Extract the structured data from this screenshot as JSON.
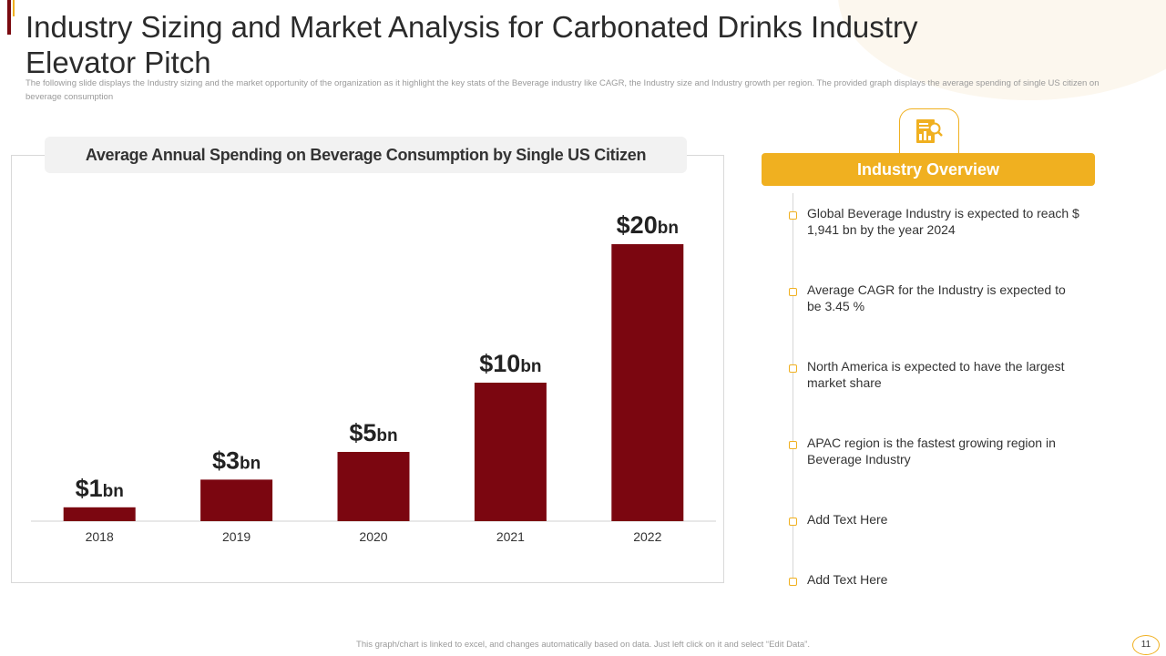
{
  "header": {
    "title": "Industry Sizing and Market Analysis for Carbonated Drinks Industry Elevator Pitch",
    "subtitle": "The following slide displays the Industry sizing and the market opportunity of the organization as it highlight the key stats of the Beverage industry like CAGR, the Industry size and Industry growth per region. The provided graph displays the average spending of single US citizen on beverage consumption"
  },
  "chart_data": {
    "type": "bar",
    "title": "Average Annual Spending on Beverage Consumption by  Single US Citizen",
    "categories": [
      "2018",
      "2019",
      "2020",
      "2021",
      "2022"
    ],
    "values": [
      1,
      3,
      5,
      10,
      20
    ],
    "value_labels": [
      "$1",
      "$3",
      "$5",
      "$10",
      "$20"
    ],
    "unit_suffix": "bn",
    "xlabel": "",
    "ylabel": "",
    "ylim": [
      0,
      20
    ],
    "grid": false,
    "bar_color": "#7b0610"
  },
  "overview": {
    "title": "Industry Overview",
    "icon": "report-magnifier-icon",
    "items": [
      "Global Beverage Industry is expected to reach $ 1,941 bn by the year 2024",
      "Average CAGR for the Industry is expected to be 3.45 %",
      "North America is expected to have the largest market share",
      "APAC region is the fastest growing region in Beverage Industry",
      "Add Text Here",
      "Add Text Here"
    ]
  },
  "footer": {
    "note": "This graph/chart is linked to excel, and changes automatically based on data. Just left click on it and select “Edit Data”.",
    "page": "11"
  },
  "colors": {
    "accent": "#f0b020",
    "bar": "#7b0610",
    "dark_accent": "#7a0a10"
  }
}
